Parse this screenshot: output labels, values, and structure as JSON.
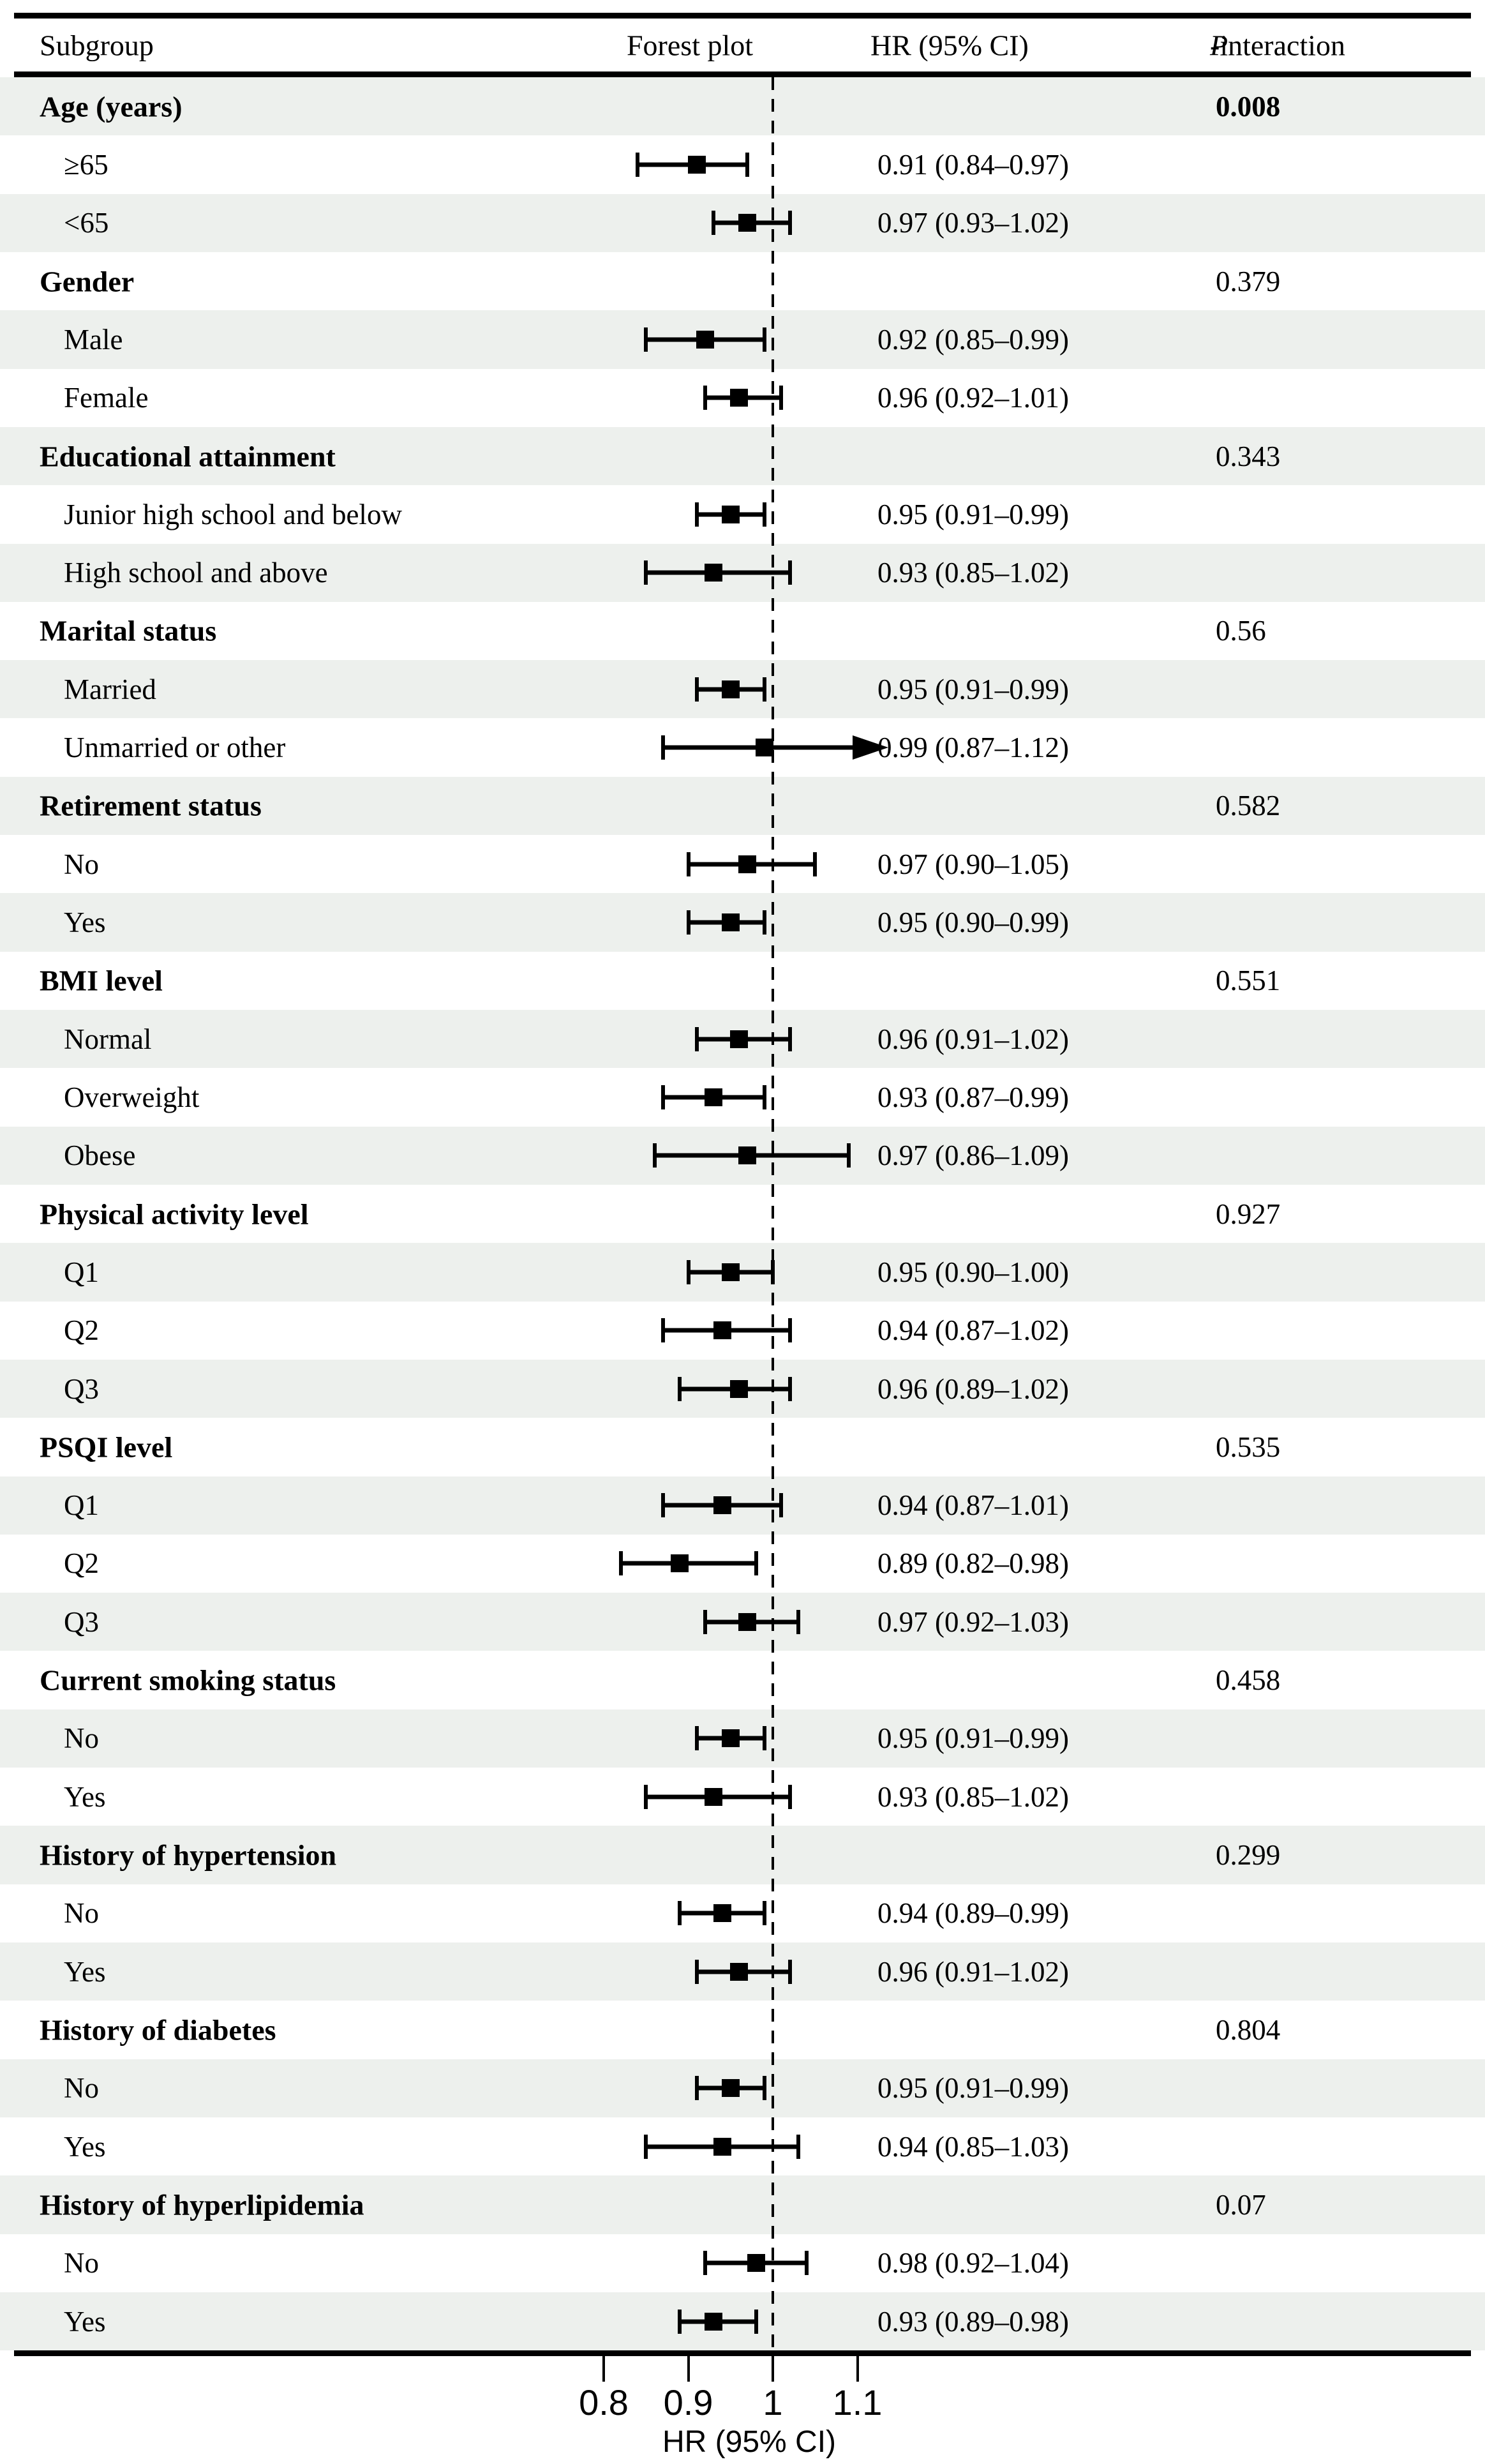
{
  "header": {
    "col_subgroup": "Subgroup",
    "col_forest": "Forest plot",
    "col_hr": "HR (95% CI)",
    "p_italic": "P",
    "p_rest": "-interaction"
  },
  "axis": {
    "tick_labels": [
      "0.8",
      "0.9",
      "1",
      "1.1"
    ],
    "tick_values": [
      0.8,
      0.9,
      1.0,
      1.1
    ],
    "label": "HR (95% CI)",
    "reference_value": 1.0
  },
  "colors": {
    "stripe": "#edf0ed",
    "ink": "#000000",
    "background": "#ffffff"
  },
  "rows": [
    {
      "type": "header",
      "label": "Age (years)",
      "p": "0.008",
      "p_bold": true,
      "shade": true
    },
    {
      "type": "item",
      "label": "≥65",
      "hr_text": "0.91 (0.84–0.97)",
      "hr": 0.91,
      "lo": 0.84,
      "hi": 0.97,
      "shade": false
    },
    {
      "type": "item",
      "label": "<65",
      "hr_text": "0.97 (0.93–1.02)",
      "hr": 0.97,
      "lo": 0.93,
      "hi": 1.02,
      "shade": true
    },
    {
      "type": "header",
      "label": "Gender",
      "p": "0.379",
      "p_bold": false,
      "shade": false
    },
    {
      "type": "item",
      "label": "Male",
      "hr_text": "0.92 (0.85–0.99)",
      "hr": 0.92,
      "lo": 0.85,
      "hi": 0.99,
      "shade": true
    },
    {
      "type": "item",
      "label": "Female",
      "hr_text": "0.96 (0.92–1.01)",
      "hr": 0.96,
      "lo": 0.92,
      "hi": 1.01,
      "shade": false
    },
    {
      "type": "header",
      "label": "Educational attainment",
      "p": "0.343",
      "p_bold": false,
      "shade": true
    },
    {
      "type": "item",
      "label": "Junior high school and below",
      "hr_text": "0.95 (0.91–0.99)",
      "hr": 0.95,
      "lo": 0.91,
      "hi": 0.99,
      "shade": false
    },
    {
      "type": "item",
      "label": "High school and above",
      "hr_text": "0.93 (0.85–1.02)",
      "hr": 0.93,
      "lo": 0.85,
      "hi": 1.02,
      "shade": true
    },
    {
      "type": "header",
      "label": "Marital status",
      "p": "0.56",
      "p_bold": false,
      "shade": false
    },
    {
      "type": "item",
      "label": "Married",
      "hr_text": "0.95 (0.91–0.99)",
      "hr": 0.95,
      "lo": 0.91,
      "hi": 0.99,
      "shade": true
    },
    {
      "type": "item",
      "label": "Unmarried or other",
      "hr_text": "0.99 (0.87–1.12)",
      "hr": 0.99,
      "lo": 0.87,
      "hi": 1.12,
      "arrow": true,
      "shade": false
    },
    {
      "type": "header",
      "label": "Retirement status",
      "p": "0.582",
      "p_bold": false,
      "shade": true
    },
    {
      "type": "item",
      "label": "No",
      "hr_text": "0.97 (0.90–1.05)",
      "hr": 0.97,
      "lo": 0.9,
      "hi": 1.05,
      "shade": false
    },
    {
      "type": "item",
      "label": "Yes",
      "hr_text": "0.95 (0.90–0.99)",
      "hr": 0.95,
      "lo": 0.9,
      "hi": 0.99,
      "shade": true
    },
    {
      "type": "header",
      "label": "BMI level",
      "p": "0.551",
      "p_bold": false,
      "shade": false
    },
    {
      "type": "item",
      "label": "Normal",
      "hr_text": "0.96 (0.91–1.02)",
      "hr": 0.96,
      "lo": 0.91,
      "hi": 1.02,
      "shade": true
    },
    {
      "type": "item",
      "label": "Overweight",
      "hr_text": "0.93 (0.87–0.99)",
      "hr": 0.93,
      "lo": 0.87,
      "hi": 0.99,
      "shade": false
    },
    {
      "type": "item",
      "label": "Obese",
      "hr_text": "0.97 (0.86–1.09)",
      "hr": 0.97,
      "lo": 0.86,
      "hi": 1.09,
      "shade": true
    },
    {
      "type": "header",
      "label": "Physical activity level",
      "p": "0.927",
      "p_bold": false,
      "shade": false
    },
    {
      "type": "item",
      "label": "Q1",
      "hr_text": "0.95 (0.90–1.00)",
      "hr": 0.95,
      "lo": 0.9,
      "hi": 1.0,
      "shade": true
    },
    {
      "type": "item",
      "label": "Q2",
      "hr_text": "0.94 (0.87–1.02)",
      "hr": 0.94,
      "lo": 0.87,
      "hi": 1.02,
      "shade": false
    },
    {
      "type": "item",
      "label": "Q3",
      "hr_text": "0.96 (0.89–1.02)",
      "hr": 0.96,
      "lo": 0.89,
      "hi": 1.02,
      "shade": true
    },
    {
      "type": "header",
      "label": "PSQI level",
      "p": "0.535",
      "p_bold": false,
      "shade": false
    },
    {
      "type": "item",
      "label": "Q1",
      "hr_text": "0.94 (0.87–1.01)",
      "hr": 0.94,
      "lo": 0.87,
      "hi": 1.01,
      "shade": true
    },
    {
      "type": "item",
      "label": "Q2",
      "hr_text": "0.89 (0.82–0.98)",
      "hr": 0.89,
      "lo": 0.82,
      "hi": 0.98,
      "shade": false
    },
    {
      "type": "item",
      "label": "Q3",
      "hr_text": "0.97 (0.92–1.03)",
      "hr": 0.97,
      "lo": 0.92,
      "hi": 1.03,
      "shade": true
    },
    {
      "type": "header",
      "label": "Current smoking status",
      "p": "0.458",
      "p_bold": false,
      "shade": false
    },
    {
      "type": "item",
      "label": "No",
      "hr_text": "0.95 (0.91–0.99)",
      "hr": 0.95,
      "lo": 0.91,
      "hi": 0.99,
      "shade": true
    },
    {
      "type": "item",
      "label": "Yes",
      "hr_text": "0.93 (0.85–1.02)",
      "hr": 0.93,
      "lo": 0.85,
      "hi": 1.02,
      "shade": false
    },
    {
      "type": "header",
      "label": "History of hypertension",
      "p": "0.299",
      "p_bold": false,
      "shade": true
    },
    {
      "type": "item",
      "label": "No",
      "hr_text": "0.94 (0.89–0.99)",
      "hr": 0.94,
      "lo": 0.89,
      "hi": 0.99,
      "shade": false
    },
    {
      "type": "item",
      "label": "Yes",
      "hr_text": "0.96 (0.91–1.02)",
      "hr": 0.96,
      "lo": 0.91,
      "hi": 1.02,
      "shade": true
    },
    {
      "type": "header",
      "label": "History of diabetes",
      "p": "0.804",
      "p_bold": false,
      "shade": false
    },
    {
      "type": "item",
      "label": "No",
      "hr_text": "0.95 (0.91–0.99)",
      "hr": 0.95,
      "lo": 0.91,
      "hi": 0.99,
      "shade": true
    },
    {
      "type": "item",
      "label": "Yes",
      "hr_text": "0.94 (0.85–1.03)",
      "hr": 0.94,
      "lo": 0.85,
      "hi": 1.03,
      "shade": false
    },
    {
      "type": "header",
      "label": "History of hyperlipidemia",
      "p": "0.07",
      "p_bold": false,
      "shade": true
    },
    {
      "type": "item",
      "label": "No",
      "hr_text": "0.98 (0.92–1.04)",
      "hr": 0.98,
      "lo": 0.92,
      "hi": 1.04,
      "shade": false
    },
    {
      "type": "item",
      "label": "Yes",
      "hr_text": "0.93 (0.89–0.98)",
      "hr": 0.93,
      "lo": 0.89,
      "hi": 0.98,
      "shade": true
    }
  ],
  "chart_data": {
    "type": "scatter",
    "subtype": "forest-plot",
    "title": "",
    "xlabel": "HR (95% CI)",
    "x_ticks": [
      0.8,
      0.9,
      1.0,
      1.1
    ],
    "xlim": [
      0.75,
      1.17
    ],
    "reference_line": 1.0,
    "grid": false,
    "legend": false,
    "groups": [
      {
        "name": "Age (years)",
        "p_interaction": "0.008",
        "points": [
          {
            "label": "≥65",
            "hr": 0.91,
            "lo": 0.84,
            "hi": 0.97
          },
          {
            "label": "<65",
            "hr": 0.97,
            "lo": 0.93,
            "hi": 1.02
          }
        ]
      },
      {
        "name": "Gender",
        "p_interaction": "0.379",
        "points": [
          {
            "label": "Male",
            "hr": 0.92,
            "lo": 0.85,
            "hi": 0.99
          },
          {
            "label": "Female",
            "hr": 0.96,
            "lo": 0.92,
            "hi": 1.01
          }
        ]
      },
      {
        "name": "Educational attainment",
        "p_interaction": "0.343",
        "points": [
          {
            "label": "Junior high school and below",
            "hr": 0.95,
            "lo": 0.91,
            "hi": 0.99
          },
          {
            "label": "High school and above",
            "hr": 0.93,
            "lo": 0.85,
            "hi": 1.02
          }
        ]
      },
      {
        "name": "Marital status",
        "p_interaction": "0.56",
        "points": [
          {
            "label": "Married",
            "hr": 0.95,
            "lo": 0.91,
            "hi": 0.99
          },
          {
            "label": "Unmarried or other",
            "hr": 0.99,
            "lo": 0.87,
            "hi": 1.12,
            "ci_clipped_with_arrow": true
          }
        ]
      },
      {
        "name": "Retirement status",
        "p_interaction": "0.582",
        "points": [
          {
            "label": "No",
            "hr": 0.97,
            "lo": 0.9,
            "hi": 1.05
          },
          {
            "label": "Yes",
            "hr": 0.95,
            "lo": 0.9,
            "hi": 0.99
          }
        ]
      },
      {
        "name": "BMI level",
        "p_interaction": "0.551",
        "points": [
          {
            "label": "Normal",
            "hr": 0.96,
            "lo": 0.91,
            "hi": 1.02
          },
          {
            "label": "Overweight",
            "hr": 0.93,
            "lo": 0.87,
            "hi": 0.99
          },
          {
            "label": "Obese",
            "hr": 0.97,
            "lo": 0.86,
            "hi": 1.09
          }
        ]
      },
      {
        "name": "Physical activity level",
        "p_interaction": "0.927",
        "points": [
          {
            "label": "Q1",
            "hr": 0.95,
            "lo": 0.9,
            "hi": 1.0
          },
          {
            "label": "Q2",
            "hr": 0.94,
            "lo": 0.87,
            "hi": 1.02
          },
          {
            "label": "Q3",
            "hr": 0.96,
            "lo": 0.89,
            "hi": 1.02
          }
        ]
      },
      {
        "name": "PSQI level",
        "p_interaction": "0.535",
        "points": [
          {
            "label": "Q1",
            "hr": 0.94,
            "lo": 0.87,
            "hi": 1.01
          },
          {
            "label": "Q2",
            "hr": 0.89,
            "lo": 0.82,
            "hi": 0.98
          },
          {
            "label": "Q3",
            "hr": 0.97,
            "lo": 0.92,
            "hi": 1.03
          }
        ]
      },
      {
        "name": "Current smoking status",
        "p_interaction": "0.458",
        "points": [
          {
            "label": "No",
            "hr": 0.95,
            "lo": 0.91,
            "hi": 0.99
          },
          {
            "label": "Yes",
            "hr": 0.93,
            "lo": 0.85,
            "hi": 1.02
          }
        ]
      },
      {
        "name": "History of hypertension",
        "p_interaction": "0.299",
        "points": [
          {
            "label": "No",
            "hr": 0.94,
            "lo": 0.89,
            "hi": 0.99
          },
          {
            "label": "Yes",
            "hr": 0.96,
            "lo": 0.91,
            "hi": 1.02
          }
        ]
      },
      {
        "name": "History of diabetes",
        "p_interaction": "0.804",
        "points": [
          {
            "label": "No",
            "hr": 0.95,
            "lo": 0.91,
            "hi": 0.99
          },
          {
            "label": "Yes",
            "hr": 0.94,
            "lo": 0.85,
            "hi": 1.03
          }
        ]
      },
      {
        "name": "History of hyperlipidemia",
        "p_interaction": "0.07",
        "points": [
          {
            "label": "No",
            "hr": 0.98,
            "lo": 0.92,
            "hi": 1.04
          },
          {
            "label": "Yes",
            "hr": 0.93,
            "lo": 0.89,
            "hi": 0.98
          }
        ]
      }
    ]
  }
}
